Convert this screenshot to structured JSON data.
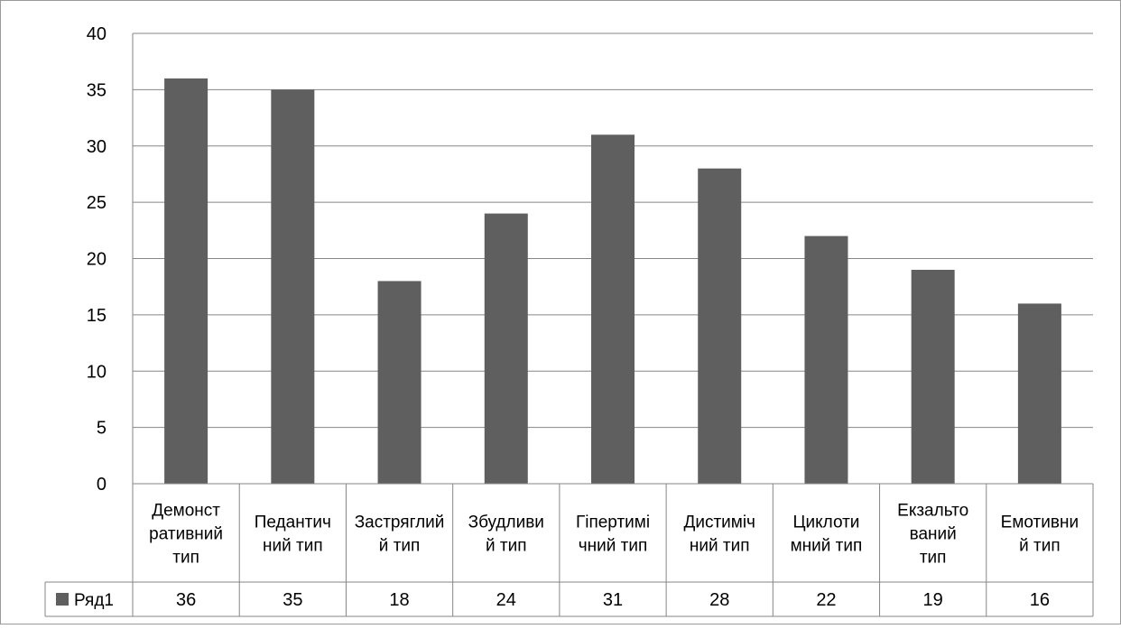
{
  "chart_data": {
    "type": "bar",
    "categories": [
      [
        "Демонст",
        "ративний",
        "тип"
      ],
      [
        "Педантич",
        "ний тип"
      ],
      [
        "Застряглий",
        "й тип"
      ],
      [
        "Збудливи",
        "й тип"
      ],
      [
        "Гіпертимі",
        "чний тип"
      ],
      [
        "Дистиміч",
        "ний тип"
      ],
      [
        "Циклоти",
        "мний тип"
      ],
      [
        "Екзальто",
        "ваний",
        "тип"
      ],
      [
        "Емотивни",
        "й тип"
      ]
    ],
    "series": [
      {
        "name": "Ряд1",
        "values": [
          36,
          35,
          18,
          24,
          31,
          28,
          22,
          19,
          16
        ]
      }
    ],
    "ylim": [
      0,
      40
    ],
    "yticks": [
      0,
      5,
      10,
      15,
      20,
      25,
      30,
      35,
      40
    ],
    "grid": true,
    "data_table": true,
    "colors": {
      "bar": "#5f5f5f",
      "grid": "#868686",
      "border": "#868686"
    }
  }
}
